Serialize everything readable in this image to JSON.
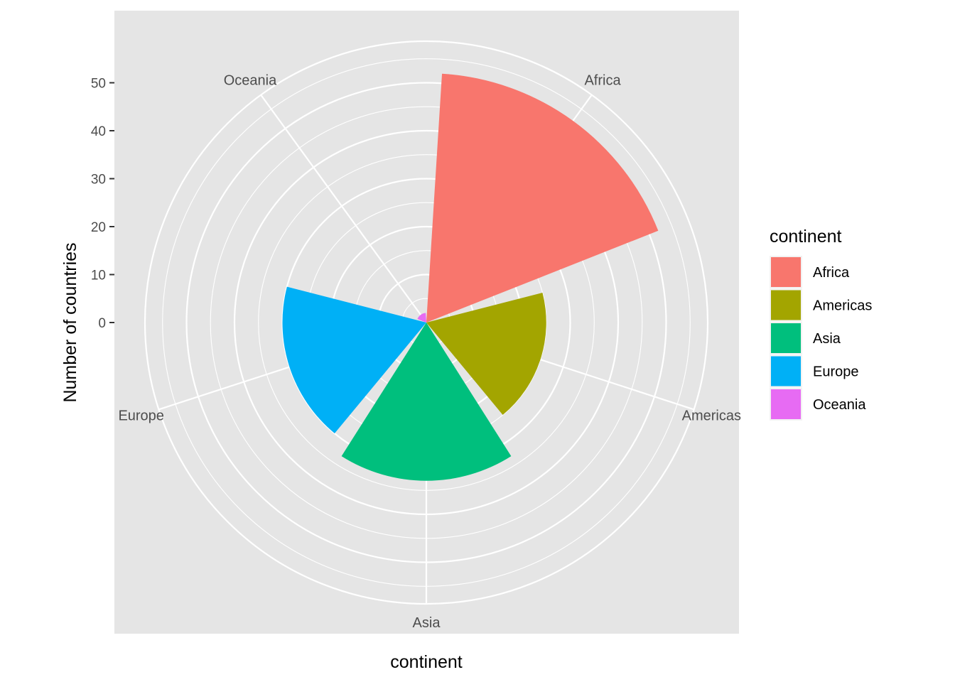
{
  "chart_data": {
    "type": "bar",
    "coord": "polar",
    "categories": [
      "Africa",
      "Americas",
      "Asia",
      "Europe",
      "Oceania"
    ],
    "values": [
      52,
      25,
      33,
      30,
      2
    ],
    "xlabel": "continent",
    "ylabel": "Number of countries",
    "yticks": [
      0,
      10,
      20,
      30,
      40,
      50
    ],
    "grid": true,
    "legend": {
      "title": "continent",
      "position": "right",
      "entries": [
        "Africa",
        "Americas",
        "Asia",
        "Europe",
        "Oceania"
      ]
    },
    "colors": {
      "Africa": "#F8766D",
      "Americas": "#A3A500",
      "Asia": "#00BF7D",
      "Europe": "#00B0F6",
      "Oceania": "#E76BF3"
    },
    "panel_background": "#E5E5E5",
    "grid_color": "#FFFFFF"
  }
}
